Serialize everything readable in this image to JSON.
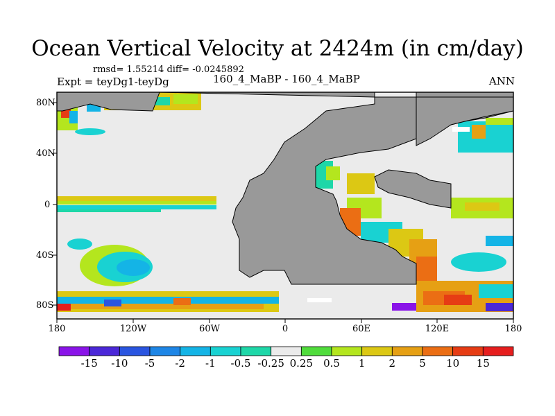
{
  "title": "Ocean Vertical Velocity at 2424m (in cm/day)",
  "stats": "rmsd= 1.55214  diff= -0.0245892",
  "experiment": "Expt = teyDg1-teyDg",
  "case": "160_4_MaBP - 160_4_MaBP",
  "season": "ANN",
  "lat_labels": [
    "80N",
    "40N",
    "0",
    "40S",
    "80S"
  ],
  "lon_labels": [
    "180",
    "120W",
    "60W",
    "0",
    "60E",
    "120E",
    "180"
  ],
  "colorbar": {
    "labels": [
      "-15",
      "-10",
      "-5",
      "-2",
      "-1",
      "-0.5",
      "-0.25",
      "0.25",
      "0.5",
      "1",
      "2",
      "5",
      "10",
      "15"
    ],
    "colors": [
      "#8a14e8",
      "#4b28d8",
      "#2a55e0",
      "#1e86e6",
      "#14b4e6",
      "#19d2d2",
      "#1ed7a8",
      "#ebebeb",
      "#50dc3c",
      "#b4e61e",
      "#dcc814",
      "#e6a014",
      "#eb6e14",
      "#e63c14",
      "#e61e1e"
    ]
  },
  "colors": {
    "land": "#999999",
    "ocean_neutral": "#ebebeb",
    "frame": "#000000"
  }
}
